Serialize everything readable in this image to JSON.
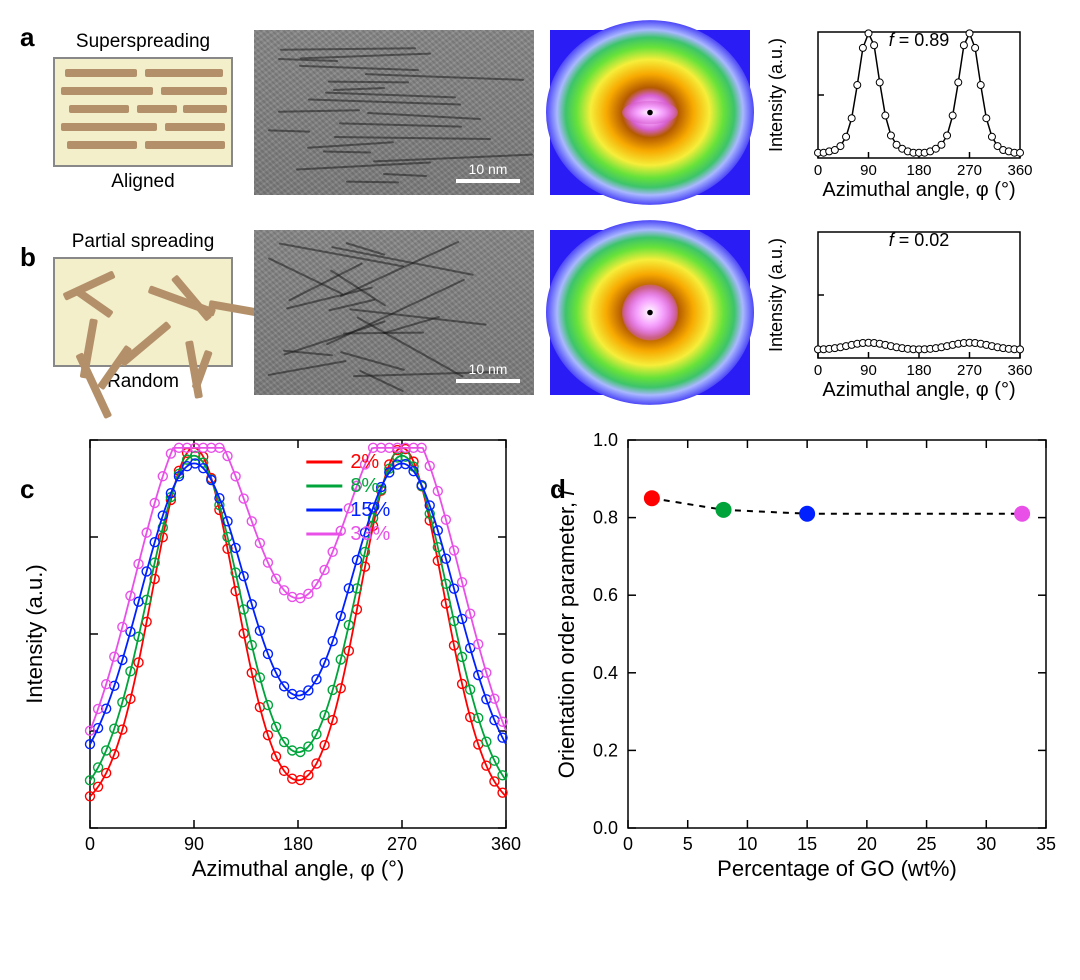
{
  "panel_a": {
    "label": "a",
    "title": "Superspreading",
    "caption": "Aligned",
    "schematic_bg": "#f2efca",
    "schematic_border": "#888888",
    "bar_color": "#b4906a",
    "bars": [
      {
        "top": 10,
        "left": 10,
        "width": 72
      },
      {
        "top": 10,
        "left": 90,
        "width": 78
      },
      {
        "top": 28,
        "left": 6,
        "width": 92
      },
      {
        "top": 28,
        "left": 106,
        "width": 66
      },
      {
        "top": 46,
        "left": 14,
        "width": 60
      },
      {
        "top": 46,
        "left": 82,
        "width": 40
      },
      {
        "top": 46,
        "left": 128,
        "width": 44
      },
      {
        "top": 64,
        "left": 6,
        "width": 96
      },
      {
        "top": 64,
        "left": 110,
        "width": 60
      },
      {
        "top": 82,
        "left": 12,
        "width": 70
      },
      {
        "top": 82,
        "left": 90,
        "width": 80
      }
    ],
    "tem_scale_label": "10 nm",
    "diffraction": {
      "pattern": "aligned",
      "core_aspect": 0.42
    },
    "chart": {
      "annotation": "f = 0.89",
      "annotation_style": "italic-f",
      "xlabel": "Azimuthal angle, φ (°)",
      "ylabel": "Intensity (a.u.)",
      "xlim": [
        0,
        360
      ],
      "xticks": [
        0,
        90,
        180,
        270,
        360
      ],
      "ylim": [
        0.05,
        1.0
      ],
      "series_color": "#000000",
      "marker": "open-circle",
      "marker_size": 3.5,
      "line_width": 1.5,
      "data": {
        "x": [
          0,
          10,
          20,
          30,
          40,
          50,
          60,
          70,
          80,
          90,
          100,
          110,
          120,
          130,
          140,
          150,
          160,
          170,
          180,
          190,
          200,
          210,
          220,
          230,
          240,
          250,
          260,
          270,
          280,
          290,
          300,
          310,
          320,
          330,
          340,
          350,
          360
        ],
        "y": [
          0.09,
          0.09,
          0.1,
          0.11,
          0.14,
          0.21,
          0.35,
          0.6,
          0.88,
          0.99,
          0.9,
          0.62,
          0.37,
          0.22,
          0.15,
          0.12,
          0.1,
          0.09,
          0.09,
          0.09,
          0.1,
          0.12,
          0.15,
          0.22,
          0.37,
          0.62,
          0.9,
          0.99,
          0.88,
          0.6,
          0.35,
          0.21,
          0.14,
          0.11,
          0.1,
          0.09,
          0.09
        ]
      }
    }
  },
  "panel_b": {
    "label": "b",
    "title": "Partial spreading",
    "caption": "Random",
    "bar_color": "#b4906a",
    "bars": [
      {
        "x": 20,
        "y": 95,
        "len": 70,
        "rot": -25
      },
      {
        "x": 55,
        "y": 15,
        "len": 55,
        "rot": 65
      },
      {
        "x": 35,
        "y": 60,
        "len": 60,
        "rot": 10
      },
      {
        "x": 90,
        "y": 30,
        "len": 70,
        "rot": -70
      },
      {
        "x": 70,
        "y": 88,
        "len": 50,
        "rot": 35
      },
      {
        "x": 115,
        "y": 18,
        "len": 55,
        "rot": -40
      },
      {
        "x": 130,
        "y": 82,
        "len": 58,
        "rot": -10
      },
      {
        "x": 110,
        "y": 65,
        "len": 62,
        "rot": 50
      },
      {
        "x": 150,
        "y": 45,
        "len": 48,
        "rot": -80
      },
      {
        "x": 18,
        "y": 32,
        "len": 42,
        "rot": -55
      },
      {
        "x": 150,
        "y": 92,
        "len": 40,
        "rot": 20
      }
    ],
    "tem_scale_label": "10 nm",
    "diffraction": {
      "pattern": "random",
      "core_aspect": 1.0
    },
    "chart": {
      "annotation": "f = 0.02",
      "xlabel": "Azimuthal angle, φ (°)",
      "ylabel": "Intensity (a.u.)",
      "xlim": [
        0,
        360
      ],
      "xticks": [
        0,
        90,
        180,
        270,
        360
      ],
      "ylim": [
        0.05,
        1.0
      ],
      "series_color": "#000000",
      "marker": "open-circle",
      "marker_size": 3.5,
      "line_width": 1.5,
      "data": {
        "x": [
          0,
          10,
          20,
          30,
          40,
          50,
          60,
          70,
          80,
          90,
          100,
          110,
          120,
          130,
          140,
          150,
          160,
          170,
          180,
          190,
          200,
          210,
          220,
          230,
          240,
          250,
          260,
          270,
          280,
          290,
          300,
          310,
          320,
          330,
          340,
          350,
          360
        ],
        "y": [
          0.115,
          0.116,
          0.119,
          0.124,
          0.131,
          0.14,
          0.149,
          0.157,
          0.163,
          0.165,
          0.163,
          0.157,
          0.149,
          0.14,
          0.131,
          0.124,
          0.119,
          0.116,
          0.115,
          0.116,
          0.119,
          0.124,
          0.131,
          0.14,
          0.149,
          0.157,
          0.163,
          0.165,
          0.163,
          0.157,
          0.149,
          0.14,
          0.131,
          0.124,
          0.119,
          0.116,
          0.115
        ]
      }
    }
  },
  "panel_c": {
    "label": "c",
    "xlabel": "Azimuthal angle, φ (°)",
    "ylabel": "Intensity (a.u.)",
    "xlim": [
      0,
      360
    ],
    "xticks": [
      0,
      90,
      180,
      270,
      360
    ],
    "ylim": [
      0.03,
      1.02
    ],
    "line_width": 1.8,
    "marker": "open-circle",
    "marker_size": 4.5,
    "legend_title_suffix": "",
    "series": [
      {
        "label": "2%",
        "color": "#ff0000",
        "baseline": 0.07,
        "amp": 0.93,
        "width": 36
      },
      {
        "label": "8%",
        "color": "#00a43b",
        "baseline": 0.08,
        "amp": 0.9,
        "width": 40
      },
      {
        "label": "15%",
        "color": "#0020ff",
        "baseline": 0.12,
        "amp": 0.84,
        "width": 46
      },
      {
        "label": "33%",
        "color": "#e850e8",
        "baseline": 0.05,
        "amp": 0.93,
        "width": 52,
        "trough_boost": 0.15
      }
    ],
    "x_sample_step": 7
  },
  "panel_d": {
    "label": "d",
    "xlabel": "Percentage of GO (wt%)",
    "ylabel": "Orientation order parameter, f",
    "ylabel_italic_f": true,
    "xlim": [
      0,
      35
    ],
    "xticks": [
      0,
      5,
      10,
      15,
      20,
      25,
      30,
      35
    ],
    "ylim": [
      0,
      1.0
    ],
    "yticks": [
      0.0,
      0.2,
      0.4,
      0.6,
      0.8,
      1.0
    ],
    "line_style": "dashed",
    "line_color": "#000000",
    "line_width": 2,
    "marker_size": 8,
    "points": [
      {
        "x": 2,
        "y": 0.85,
        "color": "#ff0000"
      },
      {
        "x": 8,
        "y": 0.82,
        "color": "#00a43b"
      },
      {
        "x": 15,
        "y": 0.81,
        "color": "#0020ff"
      },
      {
        "x": 33,
        "y": 0.81,
        "color": "#e850e8"
      }
    ]
  },
  "diffraction_palette": {
    "stops": [
      {
        "o": 0,
        "c": "#ffffff"
      },
      {
        "o": 0.1,
        "c": "#f7a6ff"
      },
      {
        "o": 0.18,
        "c": "#d760d0"
      },
      {
        "o": 0.26,
        "c": "#b45a00"
      },
      {
        "o": 0.4,
        "c": "#f7a800"
      },
      {
        "o": 0.55,
        "c": "#f6ee3a"
      },
      {
        "o": 0.68,
        "c": "#67e23a"
      },
      {
        "o": 0.78,
        "c": "#3dc46a"
      },
      {
        "o": 0.86,
        "c": "#a9b8ff"
      },
      {
        "o": 1.0,
        "c": "#2a1cf4"
      }
    ]
  },
  "colors": {
    "background": "#ffffff",
    "text": "#000000"
  }
}
